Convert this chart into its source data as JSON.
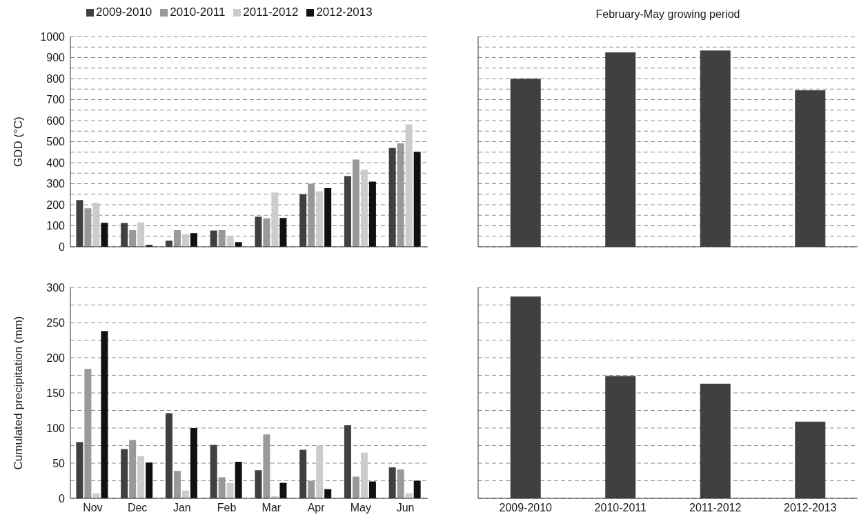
{
  "chart_data": [
    {
      "type": "bar",
      "ylabel": "GDD (°C)",
      "categories": [
        null,
        null,
        null,
        null,
        null,
        null,
        null,
        null
      ],
      "series": [
        {
          "name": "2009-2010",
          "color": "#404040",
          "values": [
            222,
            113,
            29,
            77,
            143,
            250,
            336,
            470
          ]
        },
        {
          "name": "2010-2011",
          "color": "#999999",
          "values": [
            183,
            79,
            79,
            79,
            135,
            300,
            415,
            492
          ]
        },
        {
          "name": "2011-2012",
          "color": "#cccccc",
          "values": [
            209,
            116,
            60,
            51,
            258,
            264,
            366,
            582
          ]
        },
        {
          "name": "2012-2013",
          "color": "#111111",
          "values": [
            114,
            8,
            65,
            22,
            137,
            279,
            310,
            452
          ]
        }
      ],
      "ylim": [
        0,
        1000
      ],
      "yticks": [
        0,
        {
          "value": 50,
          "label": null
        },
        100,
        {
          "value": 150,
          "label": null
        },
        200,
        {
          "value": 250,
          "label": null
        },
        300,
        {
          "value": 350,
          "label": null
        },
        400,
        {
          "value": 450,
          "label": null
        },
        500,
        {
          "value": 550,
          "label": null
        },
        600,
        {
          "value": 650,
          "label": null
        },
        700,
        {
          "value": 750,
          "label": null
        },
        800,
        {
          "value": 850,
          "label": null
        },
        900,
        {
          "value": 950,
          "label": null
        },
        1000
      ],
      "grid": "y",
      "legend": "top",
      "tick_labels": "y"
    },
    {
      "type": "bar",
      "title": "February-May growing period",
      "categories": [
        null,
        null,
        null,
        null
      ],
      "values": [
        799,
        925,
        934,
        744
      ],
      "color": "#404040",
      "ylim": [
        0,
        1000
      ],
      "yticks": [
        0,
        {
          "value": 50,
          "label": null
        },
        100,
        {
          "value": 150,
          "label": null
        },
        200,
        {
          "value": 250,
          "label": null
        },
        300,
        {
          "value": 350,
          "label": null
        },
        400,
        {
          "value": 450,
          "label": null
        },
        500,
        {
          "value": 550,
          "label": null
        },
        600,
        {
          "value": 650,
          "label": null
        },
        700,
        {
          "value": 750,
          "label": null
        },
        800,
        {
          "value": 850,
          "label": null
        },
        900,
        {
          "value": 950,
          "label": null
        },
        1000
      ],
      "grid": "y",
      "tick_labels": false
    },
    {
      "type": "bar",
      "ylabel": "Cumulated precipitation (mm)",
      "categories": [
        "Nov",
        "Dec",
        "Jan",
        "Feb",
        "Mar",
        "Apr",
        "May",
        "Jun"
      ],
      "series": [
        {
          "color": "#404040",
          "values": [
            80,
            70,
            121,
            76,
            40,
            69,
            104,
            44
          ]
        },
        {
          "color": "#999999",
          "values": [
            184,
            83,
            39,
            30,
            91,
            25,
            31,
            41
          ]
        },
        {
          "color": "#cccccc",
          "values": [
            7,
            60,
            11,
            22,
            3,
            75,
            65,
            7
          ]
        },
        {
          "color": "#111111",
          "values": [
            238,
            51,
            100,
            52,
            22,
            13,
            24,
            25
          ]
        }
      ],
      "ylim": [
        0,
        300
      ],
      "yticks": [
        0,
        {
          "value": 25,
          "label": null
        },
        50,
        {
          "value": 75,
          "label": null
        },
        100,
        {
          "value": 125,
          "label": null
        },
        150,
        {
          "value": 175,
          "label": null
        },
        200,
        {
          "value": 225,
          "label": null
        },
        250,
        {
          "value": 275,
          "label": null
        },
        300
      ],
      "grid": "y"
    },
    {
      "type": "bar",
      "categories": [
        "2009-2010",
        "2010-2011",
        "2011-2012",
        "2012-2013"
      ],
      "values": [
        287,
        174,
        163,
        109
      ],
      "color": "#404040",
      "ylim": [
        0,
        300
      ],
      "yticks": [
        0,
        {
          "value": 25,
          "label": null
        },
        50,
        {
          "value": 75,
          "label": null
        },
        100,
        {
          "value": 125,
          "label": null
        },
        150,
        {
          "value": 175,
          "label": null
        },
        200,
        {
          "value": 225,
          "label": null
        },
        250,
        {
          "value": 275,
          "label": null
        },
        300
      ],
      "grid": "y",
      "tick_labels": "x"
    }
  ]
}
